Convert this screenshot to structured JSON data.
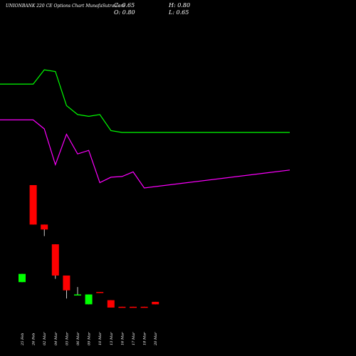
{
  "title": "UNIONBANK 220 CE Options Chart MunafaSutra.com",
  "ohlc": {
    "close_label": "C: 0.65",
    "open_label": "O: 0.80",
    "high_label": "H: 0.80",
    "low_label": "L: 0.65"
  },
  "colors": {
    "background": "#000000",
    "up": "#00ff00",
    "down": "#ff0000",
    "line_upper": "#00ff00",
    "line_lower": "#ff00ff",
    "text": "#ffffff"
  },
  "chart_data": {
    "type": "candlestick",
    "categories": [
      "25 Feb",
      "26 Feb",
      "02 Mar",
      "04 Mar",
      "05 Mar",
      "06 Mar",
      "09 Mar",
      "10 Mar",
      "13 Mar",
      "16 Mar",
      "17 Mar",
      "18 Mar",
      "20 Mar"
    ],
    "candles": [
      {
        "open": 2.0,
        "high": 2.5,
        "low": 2.0,
        "close": 2.5
      },
      {
        "open": 7.9,
        "high": 7.9,
        "low": 5.5,
        "close": 5.5
      },
      {
        "open": 5.5,
        "high": 5.5,
        "low": 4.8,
        "close": 5.2
      },
      {
        "open": 4.3,
        "high": 4.3,
        "low": 2.2,
        "close": 2.4
      },
      {
        "open": 2.4,
        "high": 2.4,
        "low": 1.0,
        "close": 1.5
      },
      {
        "open": 1.2,
        "high": 1.7,
        "low": 1.2,
        "close": 1.25
      },
      {
        "open": 0.65,
        "high": 1.25,
        "low": 0.65,
        "close": 1.25
      },
      {
        "open": 1.4,
        "high": 1.4,
        "low": 1.35,
        "close": 1.35
      },
      {
        "open": 0.9,
        "high": 0.9,
        "low": 0.45,
        "close": 0.45
      },
      {
        "open": 0.5,
        "high": 0.5,
        "low": 0.45,
        "close": 0.45
      },
      {
        "open": 0.5,
        "high": 0.5,
        "low": 0.45,
        "close": 0.45
      },
      {
        "open": 0.5,
        "high": 0.5,
        "low": 0.45,
        "close": 0.45
      },
      {
        "open": 0.8,
        "high": 0.8,
        "low": 0.65,
        "close": 0.65
      }
    ],
    "lines": [
      {
        "color": "#00ff00",
        "values": [
          7.2,
          7.2,
          7.6,
          7.55,
          6.6,
          6.35,
          6.3,
          6.35,
          5.9,
          5.85,
          5.85,
          5.85,
          5.85
        ]
      },
      {
        "color": "#ff00ff",
        "values": [
          6.2,
          6.2,
          5.95,
          4.95,
          5.8,
          5.25,
          5.35,
          4.45,
          4.6,
          4.62,
          4.75,
          4.3,
          4.8
        ]
      }
    ]
  }
}
